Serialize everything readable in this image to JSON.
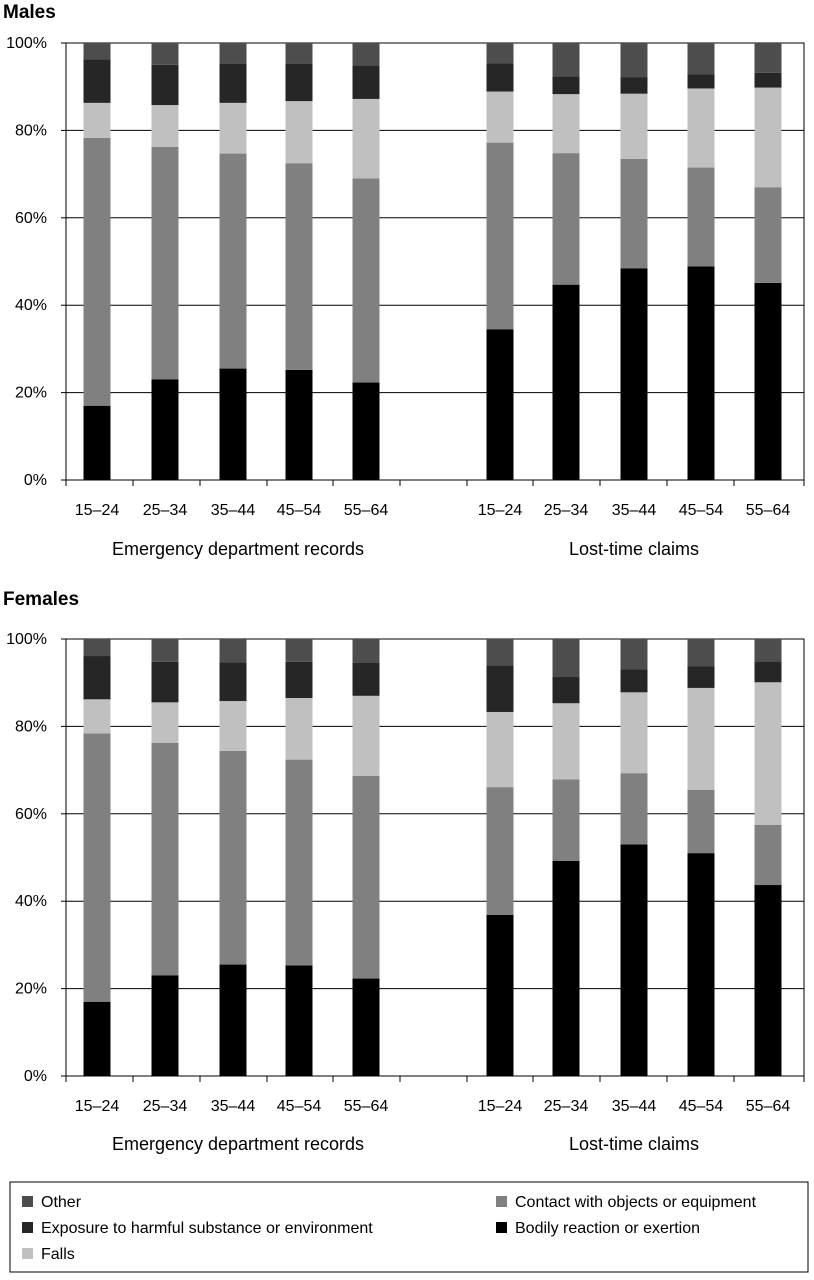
{
  "chart_data": [
    {
      "type": "bar",
      "stacked": true,
      "title": "Males",
      "ylim": [
        0,
        100
      ],
      "yticks": [
        "0%",
        "20%",
        "40%",
        "60%",
        "80%",
        "100%"
      ],
      "groups": [
        {
          "label": "Emergency department records",
          "categories": [
            "15–24",
            "25–34",
            "35–44",
            "45–54",
            "55–64"
          ]
        },
        {
          "label": "Lost-time claims",
          "categories": [
            "15–24",
            "25–34",
            "35–44",
            "45–54",
            "55–64"
          ]
        }
      ],
      "series": [
        {
          "name": "Bodily reaction or exertion",
          "color": "#000000",
          "values": [
            [
              17,
              23,
              25.5,
              25.2,
              22.3
            ],
            [
              34.5,
              44.7,
              48.4,
              48.9,
              45.1
            ]
          ]
        },
        {
          "name": "Contact with objects or equipment",
          "color": "#808080",
          "values": [
            [
              61.3,
              53.2,
              49.2,
              47.3,
              46.7
            ],
            [
              42.7,
              30.1,
              25.1,
              22.6,
              21.9
            ]
          ]
        },
        {
          "name": "Falls",
          "color": "#c0c0c0",
          "values": [
            [
              8,
              9.6,
              11.6,
              14.2,
              18.2
            ],
            [
              11.7,
              13.5,
              14.9,
              18.1,
              22.8
            ]
          ]
        },
        {
          "name": "Exposure to harmful substance or environment",
          "color": "#262626",
          "values": [
            [
              10,
              9.2,
              8.9,
              8.5,
              7.7
            ],
            [
              6.4,
              4.1,
              3.8,
              3.2,
              3.4
            ]
          ]
        },
        {
          "name": "Other",
          "color": "#4d4d4d",
          "values": [
            [
              3.7,
              5,
              4.8,
              4.8,
              5.1
            ],
            [
              4.7,
              7.6,
              7.8,
              7.2,
              6.8
            ]
          ]
        }
      ]
    },
    {
      "type": "bar",
      "stacked": true,
      "title": "Females",
      "ylim": [
        0,
        100
      ],
      "yticks": [
        "0%",
        "20%",
        "40%",
        "60%",
        "80%",
        "100%"
      ],
      "groups": [
        {
          "label": "Emergency department records",
          "categories": [
            "15–24",
            "25–34",
            "35–44",
            "45–54",
            "55–64"
          ]
        },
        {
          "label": "Lost-time claims",
          "categories": [
            "15–24",
            "25–34",
            "35–44",
            "45–54",
            "55–64"
          ]
        }
      ],
      "series": [
        {
          "name": "Bodily reaction or exertion",
          "color": "#000000",
          "values": [
            [
              17,
              23,
              25.5,
              25.3,
              22.3
            ],
            [
              36.9,
              49.2,
              53,
              51,
              43.7
            ]
          ]
        },
        {
          "name": "Contact with objects or equipment",
          "color": "#808080",
          "values": [
            [
              61.4,
              53.2,
              48.9,
              47.1,
              46.4
            ],
            [
              29.2,
              18.7,
              16.3,
              14.5,
              13.8
            ]
          ]
        },
        {
          "name": "Falls",
          "color": "#c0c0c0",
          "values": [
            [
              7.8,
              9.3,
              11.4,
              14.1,
              18.3
            ],
            [
              17.2,
              17.4,
              18.5,
              23.3,
              32.6
            ]
          ]
        },
        {
          "name": "Exposure to harmful substance or environment",
          "color": "#262626",
          "values": [
            [
              9.9,
              9.3,
              8.9,
              8.3,
              7.6
            ],
            [
              10.7,
              6,
              5.3,
              5,
              4.8
            ]
          ]
        },
        {
          "name": "Other",
          "color": "#4d4d4d",
          "values": [
            [
              3.9,
              5.2,
              5.3,
              5.2,
              5.4
            ],
            [
              6,
              8.7,
              6.9,
              6.2,
              5.1
            ]
          ]
        }
      ]
    }
  ],
  "legend": {
    "items": [
      {
        "name": "Other",
        "color": "#4d4d4d"
      },
      {
        "name": "Exposure to harmful substance or environment",
        "color": "#262626"
      },
      {
        "name": "Falls",
        "color": "#c0c0c0"
      },
      {
        "name": "Contact with objects or equipment",
        "color": "#808080"
      },
      {
        "name": "Bodily reaction or exertion",
        "color": "#000000"
      }
    ]
  }
}
